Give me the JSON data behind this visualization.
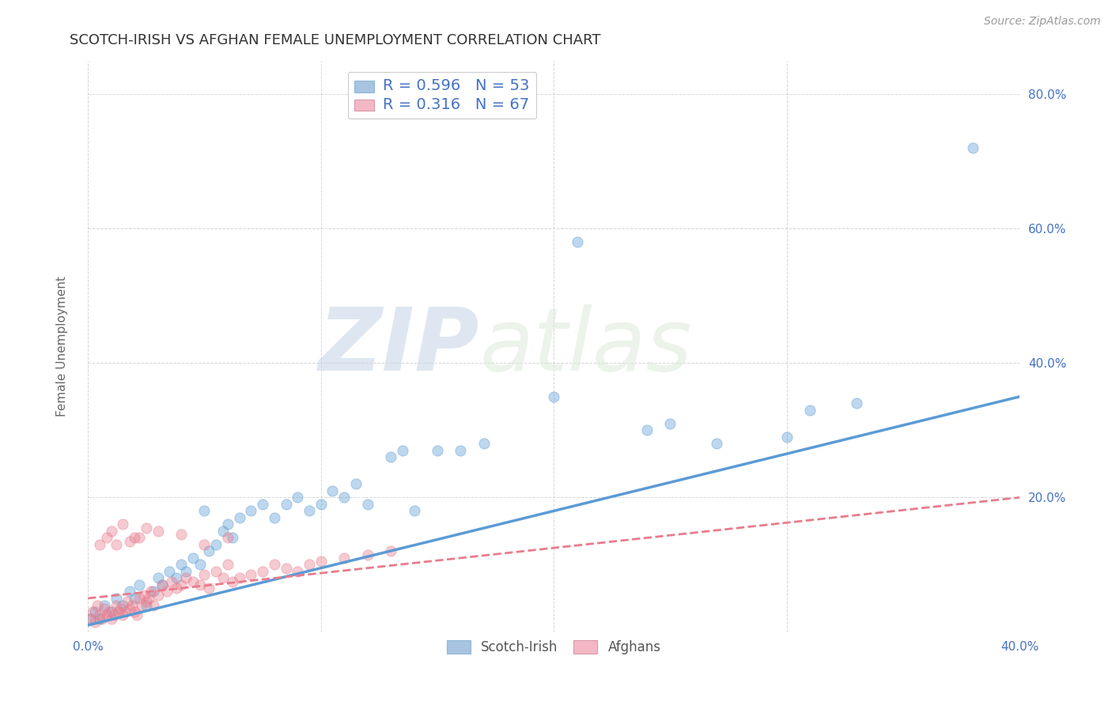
{
  "title": "SCOTCH-IRISH VS AFGHAN FEMALE UNEMPLOYMENT CORRELATION CHART",
  "source": "Source: ZipAtlas.com",
  "ylabel": "Female Unemployment",
  "watermark_zip": "ZIP",
  "watermark_atlas": "atlas",
  "xlim": [
    0.0,
    0.4
  ],
  "ylim": [
    0.0,
    0.85
  ],
  "xticks": [
    0.0,
    0.1,
    0.2,
    0.3,
    0.4
  ],
  "yticks": [
    0.2,
    0.4,
    0.6,
    0.8
  ],
  "ytick_labels_right": [
    "20.0%",
    "40.0%",
    "60.0%",
    "80.0%"
  ],
  "xtick_labels": [
    "0.0%",
    "",
    "",
    "",
    "40.0%"
  ],
  "blue_color": "#5b9bd5",
  "pink_color": "#e87c8c",
  "blue_fill": "#a8c4e0",
  "pink_fill": "#f4b8c4",
  "scotch_irish_points": [
    [
      0.001,
      0.02
    ],
    [
      0.003,
      0.03
    ],
    [
      0.005,
      0.02
    ],
    [
      0.007,
      0.04
    ],
    [
      0.01,
      0.03
    ],
    [
      0.012,
      0.05
    ],
    [
      0.015,
      0.04
    ],
    [
      0.018,
      0.06
    ],
    [
      0.02,
      0.05
    ],
    [
      0.022,
      0.07
    ],
    [
      0.025,
      0.04
    ],
    [
      0.028,
      0.06
    ],
    [
      0.03,
      0.08
    ],
    [
      0.032,
      0.07
    ],
    [
      0.035,
      0.09
    ],
    [
      0.038,
      0.08
    ],
    [
      0.04,
      0.1
    ],
    [
      0.042,
      0.09
    ],
    [
      0.045,
      0.11
    ],
    [
      0.048,
      0.1
    ],
    [
      0.05,
      0.18
    ],
    [
      0.052,
      0.12
    ],
    [
      0.055,
      0.13
    ],
    [
      0.058,
      0.15
    ],
    [
      0.06,
      0.16
    ],
    [
      0.062,
      0.14
    ],
    [
      0.065,
      0.17
    ],
    [
      0.07,
      0.18
    ],
    [
      0.075,
      0.19
    ],
    [
      0.08,
      0.17
    ],
    [
      0.085,
      0.19
    ],
    [
      0.09,
      0.2
    ],
    [
      0.095,
      0.18
    ],
    [
      0.1,
      0.19
    ],
    [
      0.105,
      0.21
    ],
    [
      0.11,
      0.2
    ],
    [
      0.115,
      0.22
    ],
    [
      0.12,
      0.19
    ],
    [
      0.13,
      0.26
    ],
    [
      0.135,
      0.27
    ],
    [
      0.14,
      0.18
    ],
    [
      0.15,
      0.27
    ],
    [
      0.16,
      0.27
    ],
    [
      0.17,
      0.28
    ],
    [
      0.2,
      0.35
    ],
    [
      0.21,
      0.58
    ],
    [
      0.24,
      0.3
    ],
    [
      0.25,
      0.31
    ],
    [
      0.27,
      0.28
    ],
    [
      0.3,
      0.29
    ],
    [
      0.31,
      0.33
    ],
    [
      0.33,
      0.34
    ],
    [
      0.38,
      0.72
    ]
  ],
  "afghan_points": [
    [
      0.001,
      0.02
    ],
    [
      0.002,
      0.03
    ],
    [
      0.003,
      0.015
    ],
    [
      0.004,
      0.04
    ],
    [
      0.005,
      0.025
    ],
    [
      0.006,
      0.02
    ],
    [
      0.007,
      0.035
    ],
    [
      0.008,
      0.025
    ],
    [
      0.009,
      0.03
    ],
    [
      0.01,
      0.02
    ],
    [
      0.011,
      0.025
    ],
    [
      0.012,
      0.04
    ],
    [
      0.013,
      0.03
    ],
    [
      0.014,
      0.035
    ],
    [
      0.015,
      0.025
    ],
    [
      0.016,
      0.03
    ],
    [
      0.017,
      0.045
    ],
    [
      0.018,
      0.035
    ],
    [
      0.019,
      0.04
    ],
    [
      0.02,
      0.03
    ],
    [
      0.021,
      0.025
    ],
    [
      0.022,
      0.05
    ],
    [
      0.023,
      0.04
    ],
    [
      0.024,
      0.055
    ],
    [
      0.025,
      0.045
    ],
    [
      0.026,
      0.05
    ],
    [
      0.027,
      0.06
    ],
    [
      0.028,
      0.04
    ],
    [
      0.03,
      0.055
    ],
    [
      0.032,
      0.07
    ],
    [
      0.034,
      0.06
    ],
    [
      0.036,
      0.075
    ],
    [
      0.038,
      0.065
    ],
    [
      0.04,
      0.07
    ],
    [
      0.042,
      0.08
    ],
    [
      0.045,
      0.075
    ],
    [
      0.048,
      0.07
    ],
    [
      0.05,
      0.085
    ],
    [
      0.052,
      0.065
    ],
    [
      0.055,
      0.09
    ],
    [
      0.058,
      0.08
    ],
    [
      0.06,
      0.1
    ],
    [
      0.062,
      0.075
    ],
    [
      0.065,
      0.08
    ],
    [
      0.07,
      0.085
    ],
    [
      0.075,
      0.09
    ],
    [
      0.08,
      0.1
    ],
    [
      0.085,
      0.095
    ],
    [
      0.09,
      0.09
    ],
    [
      0.095,
      0.1
    ],
    [
      0.1,
      0.105
    ],
    [
      0.11,
      0.11
    ],
    [
      0.12,
      0.115
    ],
    [
      0.13,
      0.12
    ],
    [
      0.01,
      0.15
    ],
    [
      0.015,
      0.16
    ],
    [
      0.02,
      0.14
    ],
    [
      0.025,
      0.155
    ],
    [
      0.03,
      0.15
    ],
    [
      0.012,
      0.13
    ],
    [
      0.018,
      0.135
    ],
    [
      0.022,
      0.14
    ],
    [
      0.04,
      0.145
    ],
    [
      0.008,
      0.14
    ],
    [
      0.005,
      0.13
    ],
    [
      0.05,
      0.13
    ],
    [
      0.06,
      0.14
    ]
  ],
  "background_color": "#ffffff",
  "grid_color": "#cccccc",
  "title_fontsize": 13,
  "label_fontsize": 11,
  "tick_fontsize": 11,
  "tick_color": "#4472c4",
  "source_fontsize": 10,
  "legend_r1": "R = 0.596",
  "legend_n1": "N = 53",
  "legend_r2": "R = 0.316",
  "legend_n2": "N = 67"
}
